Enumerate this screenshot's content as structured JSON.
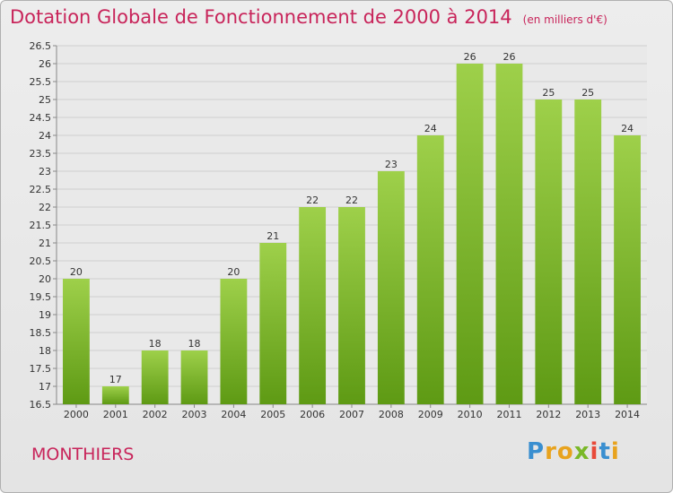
{
  "chart_data": {
    "type": "bar",
    "title": "Dotation Globale de Fonctionnement de 2000 à 2014",
    "subtitle": "(en milliers d'€)",
    "xlabel": "",
    "ylabel": "",
    "categories": [
      "2000",
      "2001",
      "2002",
      "2003",
      "2004",
      "2005",
      "2006",
      "2007",
      "2008",
      "2009",
      "2010",
      "2011",
      "2012",
      "2013",
      "2014"
    ],
    "values": [
      20,
      17,
      18,
      18,
      20,
      21,
      22,
      22,
      23,
      24,
      26,
      26,
      25,
      25,
      24
    ],
    "data_labels": [
      "20",
      "17",
      "18",
      "18",
      "20",
      "21",
      "22",
      "22",
      "23",
      "24",
      "26",
      "26",
      "25",
      "25",
      "24"
    ],
    "ylim": [
      16.5,
      26.5
    ],
    "yticks": [
      "16.5",
      "17",
      "17.5",
      "18",
      "18.5",
      "19",
      "19.5",
      "20",
      "20.5",
      "21",
      "21.5",
      "22",
      "22.5",
      "23",
      "23.5",
      "24",
      "24.5",
      "25",
      "25.5",
      "26",
      "26.5"
    ],
    "grid": true,
    "legend": "none",
    "colors": {
      "bar_light": "#9ed04a",
      "bar_dark": "#5e9a14",
      "grid": "#cfcfcf",
      "text": "#333333"
    }
  },
  "page": {
    "commune": "MONTHIERS",
    "logo_letters": [
      "P",
      "r",
      "o",
      "x",
      "i",
      "t",
      "i"
    ],
    "logo_colors": [
      "#3a8fd0",
      "#e8a31e",
      "#e8a31e",
      "#7ab828",
      "#e84a3a",
      "#3a8fd0",
      "#e8a31e"
    ]
  }
}
